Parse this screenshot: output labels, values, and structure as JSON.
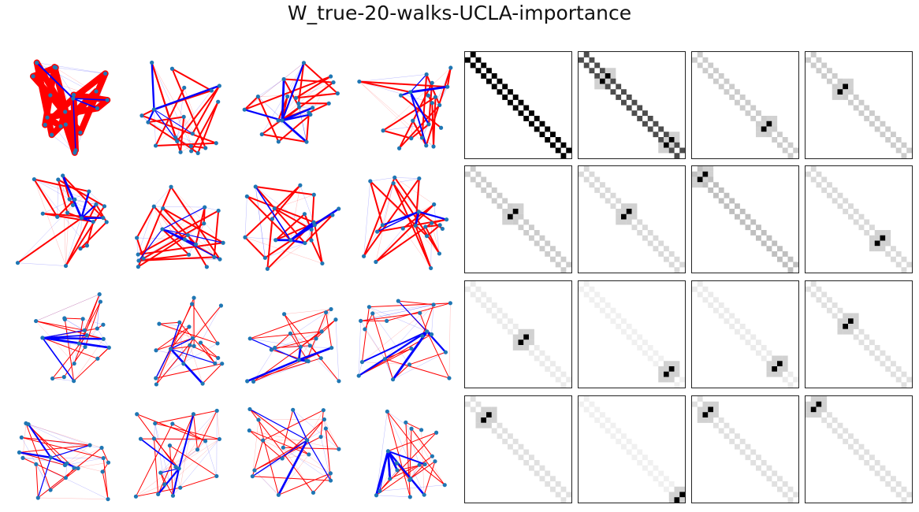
{
  "title": "W_true-20-walks-UCLA-importance",
  "colors": {
    "node": "#1f77b4",
    "positive_edge": "#ff0000",
    "negative_edge": "#0000ff",
    "background": "#ffffff",
    "matrix_dark": "#000000"
  },
  "graphs": {
    "rows": 4,
    "cols": 4,
    "nodes_per_graph": 20,
    "layout": "spring",
    "edge_width_encodes": "weight magnitude"
  },
  "matrices": {
    "rows": 4,
    "cols": 4,
    "size": 20,
    "colormap": "gray_r",
    "panels": [
      {
        "pattern": "band",
        "strength": 1.0,
        "offset": 1
      },
      {
        "pattern": "band",
        "strength": 0.7,
        "offset": 1,
        "hotspots": [
          [
            5,
            4
          ],
          [
            17,
            16
          ]
        ]
      },
      {
        "pattern": "band",
        "strength": 0.2,
        "offset": 1,
        "hotspots": [
          [
            14,
            13
          ]
        ]
      },
      {
        "pattern": "band",
        "strength": 0.2,
        "offset": 1,
        "hotspots": [
          [
            7,
            6
          ]
        ]
      },
      {
        "pattern": "band",
        "strength": 0.2,
        "offset": 1,
        "hotspots": [
          [
            9,
            8
          ]
        ]
      },
      {
        "pattern": "band",
        "strength": 0.15,
        "offset": 1,
        "hotspots": [
          [
            9,
            8
          ]
        ]
      },
      {
        "pattern": "band",
        "strength": 0.25,
        "offset": 1,
        "hotspots": [
          [
            2,
            1
          ]
        ]
      },
      {
        "pattern": "band",
        "strength": 0.15,
        "offset": 1,
        "hotspots": [
          [
            14,
            13
          ]
        ]
      },
      {
        "pattern": "band",
        "strength": 0.08,
        "offset": 1,
        "hotspots": [
          [
            11,
            10
          ]
        ]
      },
      {
        "pattern": "band",
        "strength": 0.06,
        "offset": 1,
        "hotspots": [
          [
            17,
            16
          ]
        ]
      },
      {
        "pattern": "band",
        "strength": 0.08,
        "offset": 1,
        "hotspots": [
          [
            16,
            15
          ]
        ]
      },
      {
        "pattern": "band",
        "strength": 0.12,
        "offset": 1,
        "hotspots": [
          [
            8,
            7
          ]
        ]
      },
      {
        "pattern": "band",
        "strength": 0.12,
        "offset": 1,
        "hotspots": [
          [
            4,
            3
          ]
        ]
      },
      {
        "pattern": "band",
        "strength": 0.06,
        "offset": 1,
        "hotspots": [
          [
            19,
            18
          ]
        ]
      },
      {
        "pattern": "band",
        "strength": 0.12,
        "offset": 1,
        "hotspots": [
          [
            3,
            2
          ]
        ]
      },
      {
        "pattern": "band",
        "strength": 0.12,
        "offset": 1,
        "hotspots": [
          [
            2,
            1
          ]
        ]
      }
    ]
  }
}
